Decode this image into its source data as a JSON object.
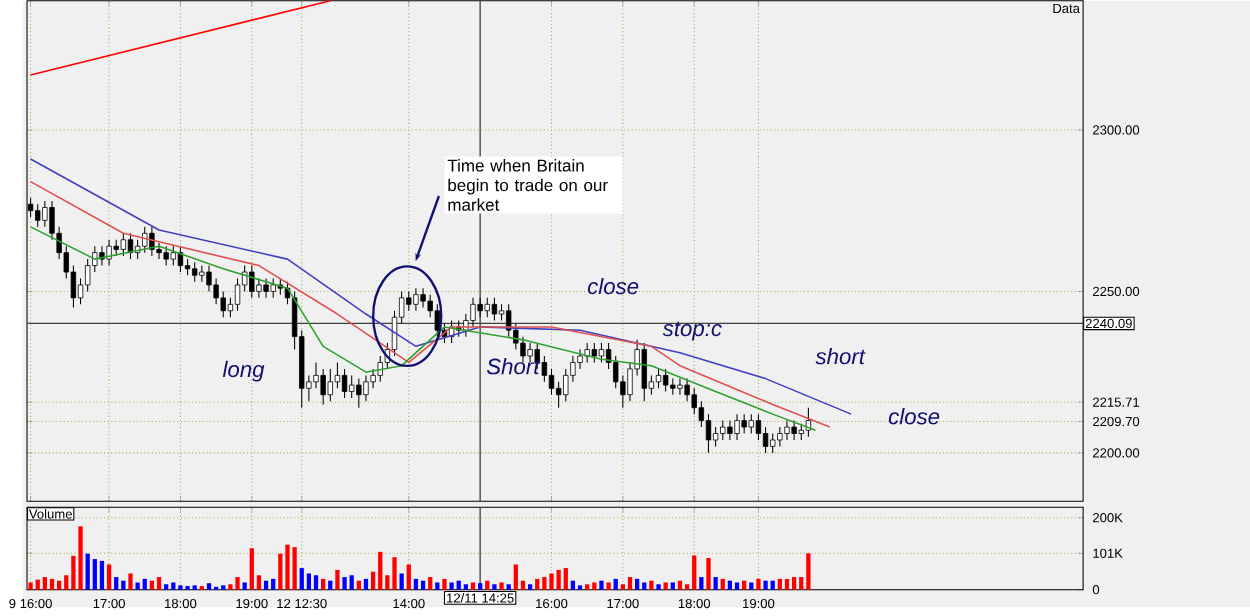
{
  "chart_data": [
    {
      "type": "candlestick",
      "title": "Data",
      "ylim": [
        2185,
        2340
      ],
      "tick_labels": "y",
      "grid": true,
      "categories": [
        "9 16:00",
        null,
        null,
        null,
        null,
        null,
        null,
        null,
        null,
        null,
        null,
        "17:00",
        null,
        null,
        null,
        null,
        null,
        null,
        null,
        null,
        null,
        "18:00",
        null,
        null,
        null,
        null,
        null,
        null,
        null,
        null,
        null,
        "19:00",
        null,
        null,
        null,
        null,
        null,
        null,
        "12 12:30",
        null,
        null,
        null,
        null,
        null,
        null,
        null,
        null,
        null,
        null,
        null,
        null,
        null,
        null,
        "14:00",
        null,
        null,
        null,
        null,
        null,
        null,
        null,
        null,
        null,
        "12/11 14:25",
        null,
        null,
        null,
        null,
        null,
        null,
        null,
        null,
        null,
        "16:00",
        null,
        null,
        null,
        null,
        null,
        null,
        null,
        null,
        null,
        "17:00",
        null,
        null,
        null,
        null,
        null,
        null,
        null,
        null,
        null,
        "18:00",
        null,
        null,
        null,
        null,
        null,
        null,
        null,
        null,
        "19:00",
        null,
        null,
        null,
        null,
        null,
        null,
        null,
        null,
        null,
        null,
        null,
        null,
        null,
        null,
        null,
        null,
        null,
        null,
        null,
        null,
        null,
        null,
        null,
        null,
        null,
        null,
        null,
        null,
        null,
        null,
        null,
        null,
        null,
        null,
        null,
        null,
        null,
        null,
        null,
        null,
        null,
        null,
        null,
        null,
        null
      ],
      "yticks": [
        {
          "value": 2200,
          "label": "2200.00"
        },
        {
          "value": 2209.7,
          "label": "2209.70"
        },
        {
          "value": 2215.71,
          "label": "2215.71"
        },
        {
          "value": 2250,
          "label": "2250.00"
        },
        {
          "value": 2300,
          "label": "2300.00"
        }
      ],
      "ref_lines": [
        {
          "axis": "y",
          "value": 2240.09,
          "label": "2240.09",
          "color": "#404040"
        },
        {
          "axis": "x",
          "value": "12/11 14:25",
          "color": "#404040"
        }
      ],
      "annotations": [
        "Time when Britain begin to trade on our market",
        "long",
        "close",
        "Short",
        "stop:c",
        "short",
        "close"
      ],
      "series": [
        {
          "type": "candlestick",
          "color": "#000000",
          "ohlc": [
            [
              2277,
              2279,
              2273,
              2275
            ],
            [
              2275,
              2277,
              2270,
              2272
            ],
            [
              2272,
              2278,
              2270,
              2276
            ],
            [
              2276,
              2278,
              2266,
              2268
            ],
            [
              2268,
              2270,
              2260,
              2262
            ],
            [
              2262,
              2264,
              2254,
              2256
            ],
            [
              2256,
              2258,
              2245,
              2248
            ],
            [
              2248,
              2254,
              2246,
              2252
            ],
            [
              2252,
              2260,
              2250,
              2258
            ],
            [
              2258,
              2264,
              2256,
              2262
            ],
            [
              2262,
              2264,
              2258,
              2260
            ],
            [
              2260,
              2266,
              2258,
              2264
            ],
            [
              2264,
              2266,
              2261,
              2263
            ],
            [
              2263,
              2268,
              2261,
              2266
            ],
            [
              2266,
              2268,
              2260,
              2262
            ],
            [
              2262,
              2266,
              2260,
              2264
            ],
            [
              2264,
              2270,
              2262,
              2268
            ],
            [
              2268,
              2270,
              2261,
              2263
            ],
            [
              2263,
              2265,
              2260,
              2262
            ],
            [
              2262,
              2264,
              2258,
              2260
            ],
            [
              2260,
              2264,
              2258,
              2262
            ],
            [
              2262,
              2264,
              2256,
              2258
            ],
            [
              2258,
              2260,
              2255,
              2257
            ],
            [
              2257,
              2259,
              2253,
              2255
            ],
            [
              2255,
              2258,
              2253,
              2256
            ],
            [
              2256,
              2258,
              2250,
              2252
            ],
            [
              2252,
              2254,
              2246,
              2248
            ],
            [
              2248,
              2250,
              2242,
              2244
            ],
            [
              2244,
              2248,
              2242,
              2246
            ],
            [
              2246,
              2254,
              2244,
              2252
            ],
            [
              2252,
              2258,
              2250,
              2256
            ],
            [
              2256,
              2258,
              2248,
              2250
            ],
            [
              2250,
              2254,
              2248,
              2252
            ],
            [
              2252,
              2254,
              2248,
              2250
            ],
            [
              2250,
              2254,
              2248,
              2252
            ],
            [
              2252,
              2254,
              2249,
              2251
            ],
            [
              2251,
              2253,
              2246,
              2248
            ],
            [
              2248,
              2250,
              2232,
              2236
            ],
            [
              2236,
              2238,
              2214,
              2220
            ],
            [
              2220,
              2224,
              2216,
              2222
            ],
            [
              2222,
              2228,
              2220,
              2224
            ],
            [
              2224,
              2226,
              2215,
              2218
            ],
            [
              2218,
              2226,
              2216,
              2222
            ],
            [
              2222,
              2228,
              2220,
              2224
            ],
            [
              2224,
              2226,
              2217,
              2219
            ],
            [
              2219,
              2224,
              2217,
              2221
            ],
            [
              2221,
              2223,
              2214,
              2218
            ],
            [
              2218,
              2224,
              2216,
              2222
            ],
            [
              2222,
              2226,
              2220,
              2224
            ],
            [
              2224,
              2230,
              2222,
              2228
            ],
            [
              2228,
              2234,
              2226,
              2232
            ],
            [
              2232,
              2244,
              2230,
              2242
            ],
            [
              2242,
              2250,
              2240,
              2248
            ],
            [
              2248,
              2250,
              2244,
              2246
            ],
            [
              2246,
              2251,
              2244,
              2249
            ],
            [
              2249,
              2251,
              2245,
              2247
            ],
            [
              2247,
              2249,
              2242,
              2244
            ],
            [
              2244,
              2246,
              2236,
              2238
            ],
            [
              2238,
              2240,
              2234,
              2236
            ],
            [
              2236,
              2241,
              2234,
              2239
            ],
            [
              2239,
              2241,
              2236,
              2238
            ],
            [
              2238,
              2243,
              2236,
              2241
            ],
            [
              2241,
              2248,
              2239,
              2246
            ],
            [
              2246,
              2248,
              2242,
              2244
            ],
            [
              2244,
              2248,
              2242,
              2246
            ],
            [
              2246,
              2248,
              2241,
              2243
            ],
            [
              2243,
              2246,
              2241,
              2244
            ],
            [
              2244,
              2246,
              2236,
              2238
            ],
            [
              2238,
              2240,
              2232,
              2234
            ],
            [
              2234,
              2236,
              2228,
              2230
            ],
            [
              2230,
              2234,
              2228,
              2232
            ],
            [
              2232,
              2234,
              2226,
              2228
            ],
            [
              2228,
              2230,
              2222,
              2224
            ],
            [
              2224,
              2226,
              2218,
              2220
            ],
            [
              2220,
              2222,
              2214,
              2218
            ],
            [
              2218,
              2226,
              2216,
              2224
            ],
            [
              2224,
              2230,
              2222,
              2228
            ],
            [
              2228,
              2232,
              2226,
              2230
            ],
            [
              2230,
              2234,
              2228,
              2232
            ],
            [
              2232,
              2234,
              2228,
              2230
            ],
            [
              2230,
              2234,
              2228,
              2232
            ],
            [
              2232,
              2234,
              2226,
              2228
            ],
            [
              2228,
              2230,
              2220,
              2222
            ],
            [
              2222,
              2224,
              2214,
              2218
            ],
            [
              2218,
              2228,
              2216,
              2226
            ],
            [
              2226,
              2235,
              2224,
              2232
            ],
            [
              2232,
              2234,
              2216,
              2220
            ],
            [
              2220,
              2224,
              2218,
              2222
            ],
            [
              2222,
              2226,
              2220,
              2224
            ],
            [
              2224,
              2226,
              2219,
              2221
            ],
            [
              2221,
              2223,
              2218,
              2220
            ],
            [
              2220,
              2223,
              2218,
              2221
            ],
            [
              2221,
              2223,
              2216,
              2218
            ],
            [
              2218,
              2220,
              2212,
              2214
            ],
            [
              2214,
              2216,
              2208,
              2210
            ],
            [
              2210,
              2212,
              2200,
              2204
            ],
            [
              2204,
              2208,
              2202,
              2206
            ],
            [
              2206,
              2210,
              2204,
              2208
            ],
            [
              2208,
              2210,
              2204,
              2206
            ],
            [
              2206,
              2212,
              2204,
              2210
            ],
            [
              2210,
              2212,
              2206,
              2208
            ],
            [
              2208,
              2212,
              2206,
              2210
            ],
            [
              2210,
              2212,
              2204,
              2206
            ],
            [
              2206,
              2208,
              2200,
              2202
            ],
            [
              2202,
              2206,
              2200,
              2204
            ],
            [
              2204,
              2208,
              2202,
              2206
            ],
            [
              2206,
              2210,
              2204,
              2208
            ],
            [
              2208,
              2210,
              2204,
              2206
            ],
            [
              2206,
              2209,
              2204,
              2207
            ],
            [
              2207,
              2214,
              2205,
              2210
            ],
            null,
            null,
            null,
            null,
            null,
            null,
            null,
            null,
            null,
            null,
            null,
            null,
            null,
            null,
            null,
            null,
            null,
            null,
            null,
            null,
            null,
            null,
            null,
            null,
            null,
            null,
            null,
            null,
            null,
            null,
            null,
            null,
            null,
            null,
            null,
            null,
            null,
            null
          ]
        },
        {
          "type": "line",
          "color": "#4040c0",
          "values": [
            2291,
            null,
            null,
            null,
            null,
            null,
            null,
            null,
            null,
            null,
            null,
            null,
            null,
            null,
            null,
            null,
            null,
            null,
            2269,
            null,
            null,
            null,
            null,
            null,
            null,
            null,
            null,
            null,
            null,
            null,
            null,
            null,
            null,
            null,
            null,
            null,
            2260,
            null,
            null,
            null,
            null,
            null,
            null,
            null,
            null,
            null,
            null,
            2243,
            null,
            null,
            null,
            null,
            null,
            null,
            2233,
            null,
            null,
            null,
            null,
            null,
            null,
            null,
            null,
            2239,
            null,
            null,
            null,
            null,
            null,
            null,
            null,
            null,
            null,
            null,
            null,
            null,
            null,
            2238,
            null,
            null,
            null,
            null,
            null,
            null,
            null,
            null,
            null,
            null,
            null,
            null,
            null,
            2231,
            null,
            null,
            null,
            null,
            null,
            null,
            null,
            null,
            null,
            null,
            null,
            2223,
            null,
            null,
            null,
            null,
            null,
            null,
            null,
            null,
            null,
            null,
            null,
            2212,
            null,
            null,
            null,
            null,
            null,
            null,
            null,
            null,
            null,
            null,
            null,
            null,
            null,
            null,
            null,
            null,
            null,
            null,
            null,
            null,
            null,
            null,
            null,
            null,
            null,
            null,
            null,
            null,
            null,
            null,
            null,
            null
          ]
        },
        {
          "type": "line",
          "color": "#e05050",
          "values": [
            2284,
            null,
            null,
            null,
            null,
            null,
            null,
            null,
            null,
            null,
            null,
            null,
            null,
            2268,
            null,
            null,
            null,
            null,
            null,
            null,
            null,
            null,
            null,
            null,
            null,
            null,
            null,
            null,
            null,
            null,
            null,
            null,
            2258,
            null,
            null,
            null,
            null,
            null,
            null,
            null,
            null,
            null,
            null,
            2243,
            null,
            null,
            null,
            null,
            null,
            null,
            null,
            null,
            null,
            2228,
            null,
            null,
            null,
            null,
            null,
            2239,
            null,
            null,
            null,
            null,
            null,
            null,
            null,
            null,
            null,
            null,
            null,
            null,
            null,
            2239,
            null,
            null,
            null,
            null,
            null,
            null,
            null,
            null,
            null,
            null,
            null,
            null,
            null,
            2233,
            null,
            null,
            null,
            2227,
            null,
            null,
            null,
            null,
            null,
            null,
            null,
            null,
            null,
            null,
            null,
            null,
            2215,
            null,
            null,
            null,
            null,
            null,
            null,
            null,
            2208,
            null,
            null,
            null,
            null,
            null,
            null,
            null,
            null,
            null,
            null,
            null,
            null,
            null,
            null,
            null,
            null,
            null,
            null,
            null,
            null,
            null,
            null,
            null,
            null,
            null,
            null,
            null,
            null,
            null,
            null,
            null,
            null,
            null,
            null,
            null
          ]
        },
        {
          "type": "line",
          "color": "#30a030",
          "values": [
            2270,
            null,
            null,
            null,
            null,
            null,
            null,
            null,
            null,
            2260,
            null,
            null,
            null,
            null,
            null,
            null,
            null,
            null,
            2264,
            null,
            null,
            null,
            null,
            null,
            null,
            null,
            null,
            2257,
            null,
            null,
            null,
            null,
            null,
            null,
            null,
            null,
            2251,
            null,
            null,
            null,
            null,
            2233,
            null,
            null,
            null,
            null,
            null,
            2225,
            null,
            null,
            null,
            null,
            2227,
            null,
            null,
            null,
            null,
            null,
            2239,
            null,
            null,
            null,
            null,
            null,
            null,
            null,
            null,
            null,
            null,
            2235,
            null,
            null,
            null,
            null,
            null,
            null,
            null,
            null,
            null,
            null,
            2229,
            null,
            null,
            null,
            null,
            null,
            null,
            2227,
            null,
            null,
            null,
            null,
            null,
            null,
            null,
            null,
            2219,
            null,
            null,
            null,
            null,
            null,
            null,
            null,
            2212,
            null,
            null,
            null,
            null,
            null,
            2207,
            null,
            null,
            null,
            null,
            null,
            null,
            null,
            null,
            null,
            null,
            null,
            null,
            null,
            null,
            null,
            null,
            null,
            null,
            null,
            null,
            null,
            null,
            null,
            null,
            null,
            null,
            null,
            null,
            null,
            null,
            null,
            null,
            null,
            null,
            null,
            null,
            null
          ]
        },
        {
          "type": "line",
          "color": "#ff0000",
          "values": [
            2317,
            null,
            null,
            null,
            null,
            null,
            null,
            null,
            null,
            null,
            null,
            null,
            null,
            null,
            null,
            null,
            null,
            null,
            null,
            null,
            null,
            null,
            null,
            null,
            null,
            null,
            null,
            null,
            null,
            null,
            null,
            null,
            null,
            null,
            null,
            null,
            null,
            null,
            null,
            null,
            null,
            null,
            2340,
            null,
            null,
            null,
            null,
            null,
            null,
            null,
            null,
            null,
            null,
            null,
            null,
            null,
            null,
            null,
            null,
            null,
            null,
            null,
            null,
            null,
            null,
            null,
            null,
            null,
            null,
            null,
            null,
            null,
            null,
            null,
            null,
            null,
            null,
            null,
            null,
            null,
            null,
            null,
            null,
            null,
            null,
            null,
            null,
            null,
            null,
            null,
            null,
            null,
            null,
            null,
            null,
            null,
            null,
            null,
            null,
            null,
            null,
            null,
            null,
            null,
            null,
            null,
            null,
            null,
            null,
            null,
            null,
            null,
            null,
            null,
            null,
            null,
            null,
            null,
            null,
            null,
            null,
            null,
            null,
            null,
            null,
            null,
            null,
            null,
            null,
            null,
            null,
            null,
            null,
            null,
            null,
            null,
            null,
            null,
            null,
            null,
            null,
            null,
            null,
            null,
            null,
            null,
            null,
            null
          ]
        }
      ]
    },
    {
      "type": "bar",
      "title": "Volume",
      "ylim": [
        0,
        229
      ],
      "grid": true,
      "categories": [
        "9 16:00",
        null,
        null,
        null,
        null,
        null,
        null,
        null,
        null,
        null,
        null,
        "17:00",
        null,
        null,
        null,
        null,
        null,
        null,
        null,
        null,
        null,
        "18:00",
        null,
        null,
        null,
        null,
        null,
        null,
        null,
        null,
        null,
        "19:00",
        null,
        null,
        null,
        null,
        null,
        null,
        "12 12:30",
        null,
        null,
        null,
        null,
        null,
        null,
        null,
        null,
        null,
        null,
        null,
        null,
        null,
        null,
        "14:00",
        null,
        null,
        null,
        null,
        null,
        null,
        null,
        null,
        null,
        "12/11 14:25",
        null,
        null,
        null,
        null,
        null,
        null,
        null,
        null,
        null,
        "16:00",
        null,
        null,
        null,
        null,
        null,
        null,
        null,
        null,
        null,
        "17:00",
        null,
        null,
        null,
        null,
        null,
        null,
        null,
        null,
        null,
        "18:00",
        null,
        null,
        null,
        null,
        null,
        null,
        null,
        null,
        "19:00",
        null,
        null,
        null,
        null,
        null,
        null,
        null,
        null,
        null,
        null,
        null,
        null,
        null,
        null,
        null,
        null,
        null,
        null,
        null,
        null,
        null,
        null,
        null,
        null,
        null,
        null,
        null,
        null,
        null,
        null,
        null,
        null,
        null,
        null,
        null,
        null,
        null,
        null,
        null,
        null,
        null,
        null,
        null,
        null,
        null
      ],
      "yticks": [
        0,
        {
          "value": 101,
          "label": "101K"
        },
        {
          "value": 200,
          "label": "200K"
        }
      ],
      "ref_lines": [
        {
          "axis": "x",
          "value": "12/11 14:25",
          "color": "#404040"
        }
      ],
      "values": [
        20,
        28,
        35,
        30,
        25,
        40,
        94,
        176,
        100,
        85,
        80,
        70,
        35,
        25,
        45,
        20,
        30,
        25,
        35,
        15,
        20,
        12,
        10,
        12,
        10,
        18,
        8,
        12,
        15,
        35,
        20,
        115,
        40,
        25,
        30,
        100,
        125,
        118,
        60,
        45,
        40,
        30,
        25,
        55,
        35,
        40,
        25,
        30,
        50,
        105,
        40,
        90,
        45,
        70,
        30,
        25,
        35,
        20,
        30,
        20,
        25,
        15,
        20,
        18,
        25,
        15,
        20,
        15,
        70,
        25,
        15,
        30,
        35,
        45,
        55,
        60,
        25,
        12,
        15,
        20,
        25,
        20,
        30,
        15,
        35,
        30,
        20,
        25,
        15,
        20,
        20,
        25,
        15,
        95,
        35,
        88,
        35,
        30,
        25,
        20,
        25,
        20,
        30,
        25,
        25,
        30,
        30,
        35,
        35,
        101,
        null,
        null,
        null,
        null,
        null,
        null,
        null,
        null,
        null,
        null,
        null,
        null,
        null,
        null,
        null,
        null,
        null,
        null,
        null,
        null,
        null,
        null,
        null,
        null,
        null,
        null,
        null,
        null,
        null,
        null,
        null,
        null,
        null,
        null,
        null,
        null,
        null,
        null
      ],
      "colors": [
        "#ff0000",
        "#ff0000",
        "#ff0000",
        "#ff0000",
        "#ff0000",
        "#ff0000",
        "#ff0000",
        "#ff0000",
        "#0000ff",
        "#0000ff",
        "#0000ff",
        "#ff0000",
        "#0000ff",
        "#0000ff",
        "#ff0000",
        "#0000ff",
        "#0000ff",
        "#ff0000",
        "#ff0000",
        "#0000ff",
        "#0000ff",
        "#0000ff",
        "#0000ff",
        "#0000ff",
        "#ff0000",
        "#0000ff",
        "#0000ff",
        "#0000ff",
        "#ff0000",
        "#ff0000",
        "#0000ff",
        "#ff0000",
        "#ff0000",
        "#0000ff",
        "#0000ff",
        "#ff0000",
        "#ff0000",
        "#ff0000",
        "#0000ff",
        "#0000ff",
        "#0000ff",
        "#ff0000",
        "#0000ff",
        "#ff0000",
        "#0000ff",
        "#0000ff",
        "#ff0000",
        "#0000ff",
        "#ff0000",
        "#ff0000",
        "#ff0000",
        "#ff0000",
        "#0000ff",
        "#ff0000",
        "#0000ff",
        "#0000ff",
        "#ff0000",
        "#0000ff",
        "#ff0000",
        "#0000ff",
        "#0000ff",
        "#0000ff",
        "#ff0000",
        "#0000ff",
        "#ff0000",
        "#0000ff",
        "#ff0000",
        "#0000ff",
        "#ff0000",
        "#ff0000",
        "#0000ff",
        "#ff0000",
        "#ff0000",
        "#ff0000",
        "#ff0000",
        "#ff0000",
        "#0000ff",
        "#0000ff",
        "#ff0000",
        "#ff0000",
        "#0000ff",
        "#ff0000",
        "#0000ff",
        "#ff0000",
        "#ff0000",
        "#0000ff",
        "#0000ff",
        "#ff0000",
        "#0000ff",
        "#ff0000",
        "#0000ff",
        "#ff0000",
        "#ff0000",
        "#ff0000",
        "#0000ff",
        "#ff0000",
        "#0000ff",
        "#ff0000",
        "#0000ff",
        "#0000ff",
        "#ff0000",
        "#0000ff",
        "#ff0000",
        "#0000ff",
        "#0000ff",
        "#ff0000",
        "#ff0000",
        "#ff0000",
        "#ff0000",
        "#ff0000",
        null,
        null,
        null,
        null,
        null,
        null,
        null,
        null,
        null,
        null,
        null,
        null,
        null,
        null,
        null,
        null,
        null,
        null,
        null,
        null,
        null,
        null,
        null,
        null,
        null,
        null,
        null,
        null,
        null,
        null,
        null,
        null,
        null,
        null,
        null,
        null,
        null,
        null
      ]
    }
  ]
}
